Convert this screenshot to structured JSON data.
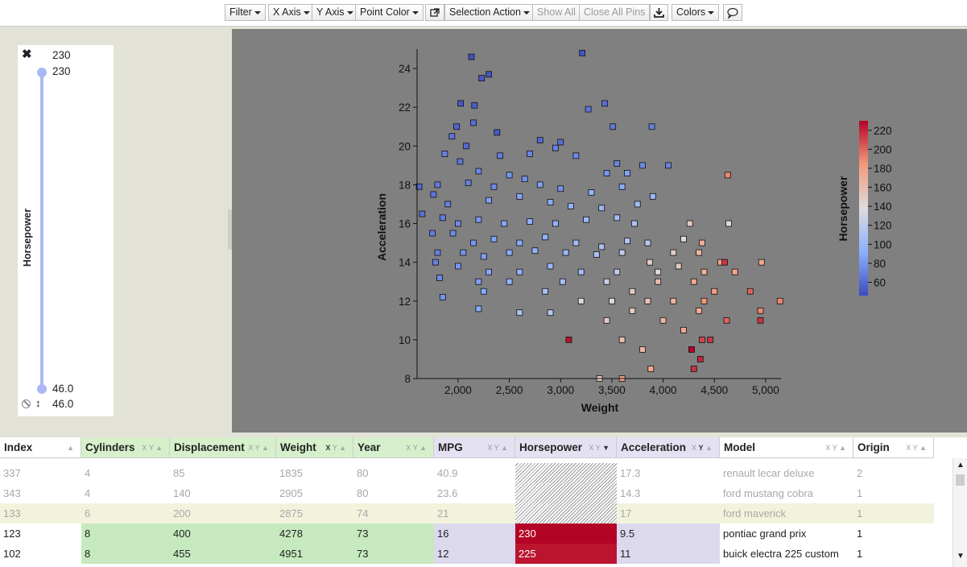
{
  "toolbar": {
    "filter": "Filter",
    "x_axis": "X Axis",
    "y_axis": "Y Axis",
    "point_color": "Point Color",
    "selection_action": "Selection Action",
    "show_all": "Show All",
    "close_all_pins": "Close All Pins",
    "colors": "Colors"
  },
  "slider": {
    "label": "Horsepower",
    "max_value": "230",
    "max_handle": "230",
    "min_handle": "46.0",
    "min_value": "46.0",
    "accent_color": "#aab8f5"
  },
  "chart_data": {
    "type": "scatter",
    "xlabel": "Weight",
    "ylabel": "Acceleration",
    "xlim": [
      1600,
      5150
    ],
    "ylim": [
      8,
      25
    ],
    "x_ticks": [
      "2,000",
      "2,500",
      "3,000",
      "3,500",
      "4,000",
      "4,500",
      "5,000"
    ],
    "x_tick_values": [
      2000,
      2500,
      3000,
      3500,
      4000,
      4500,
      5000
    ],
    "y_ticks": [
      "8",
      "10",
      "12",
      "14",
      "16",
      "18",
      "20",
      "22",
      "24"
    ],
    "y_tick_values": [
      8,
      10,
      12,
      14,
      16,
      18,
      20,
      22,
      24
    ],
    "color_by": "Horsepower",
    "color_ticks": [
      "60",
      "80",
      "100",
      "120",
      "140",
      "160",
      "180",
      "200",
      "220"
    ],
    "color_range": [
      46,
      230
    ],
    "background": "#808080",
    "points": [
      [
        3211,
        24.8,
        50
      ],
      [
        2130,
        24.6,
        48
      ],
      [
        2230,
        23.5,
        52
      ],
      [
        2300,
        23.7,
        50
      ],
      [
        2025,
        22.2,
        52
      ],
      [
        2160,
        22.1,
        55
      ],
      [
        3270,
        21.9,
        65
      ],
      [
        3430,
        22.2,
        62
      ],
      [
        1985,
        21.0,
        58
      ],
      [
        2150,
        21.2,
        62
      ],
      [
        2380,
        20.7,
        52
      ],
      [
        2080,
        20.0,
        60
      ],
      [
        3510,
        21.0,
        66
      ],
      [
        3890,
        21.0,
        70
      ],
      [
        1940,
        20.5,
        65
      ],
      [
        2800,
        20.3,
        60
      ],
      [
        3000,
        20.2,
        62
      ],
      [
        1870,
        19.6,
        70
      ],
      [
        2020,
        19.2,
        65
      ],
      [
        2410,
        19.5,
        68
      ],
      [
        2700,
        19.6,
        72
      ],
      [
        2950,
        19.9,
        70
      ],
      [
        3150,
        19.5,
        75
      ],
      [
        3550,
        19.1,
        72
      ],
      [
        3800,
        19.0,
        74
      ],
      [
        4050,
        19.0,
        70
      ],
      [
        2200,
        18.7,
        72
      ],
      [
        2500,
        18.5,
        80
      ],
      [
        2650,
        18.3,
        78
      ],
      [
        3450,
        18.6,
        80
      ],
      [
        3650,
        18.6,
        86
      ],
      [
        4630,
        18.5,
        190
      ],
      [
        1800,
        18.0,
        67
      ],
      [
        2100,
        18.1,
        70
      ],
      [
        2350,
        17.9,
        75
      ],
      [
        2800,
        18.0,
        85
      ],
      [
        3000,
        17.8,
        78
      ],
      [
        3300,
        17.6,
        95
      ],
      [
        3600,
        17.9,
        90
      ],
      [
        1620,
        17.9,
        60
      ],
      [
        1760,
        17.5,
        65
      ],
      [
        1900,
        17.0,
        70
      ],
      [
        2300,
        17.2,
        85
      ],
      [
        2600,
        17.4,
        88
      ],
      [
        2900,
        17.1,
        90
      ],
      [
        3100,
        16.9,
        95
      ],
      [
        3400,
        16.8,
        100
      ],
      [
        3750,
        17.0,
        105
      ],
      [
        3900,
        17.4,
        100
      ],
      [
        1650,
        16.5,
        62
      ],
      [
        1850,
        16.3,
        68
      ],
      [
        2000,
        16.0,
        75
      ],
      [
        2200,
        16.2,
        80
      ],
      [
        2450,
        16.0,
        88
      ],
      [
        2700,
        16.1,
        92
      ],
      [
        2950,
        16.0,
        95
      ],
      [
        3250,
        16.2,
        100
      ],
      [
        3550,
        16.3,
        105
      ],
      [
        3720,
        16.0,
        110
      ],
      [
        4260,
        16.0,
        150
      ],
      [
        4640,
        16.0,
        140
      ],
      [
        1750,
        15.5,
        68
      ],
      [
        1950,
        15.5,
        75
      ],
      [
        2150,
        15.0,
        80
      ],
      [
        2350,
        15.2,
        85
      ],
      [
        2600,
        15.0,
        90
      ],
      [
        2850,
        15.3,
        95
      ],
      [
        3150,
        15.0,
        105
      ],
      [
        3400,
        14.8,
        110
      ],
      [
        3650,
        15.1,
        115
      ],
      [
        3850,
        15.0,
        118
      ],
      [
        4200,
        15.2,
        140
      ],
      [
        4380,
        15.0,
        170
      ],
      [
        1800,
        14.5,
        70
      ],
      [
        2050,
        14.5,
        78
      ],
      [
        2250,
        14.3,
        85
      ],
      [
        2500,
        14.5,
        90
      ],
      [
        2750,
        14.6,
        95
      ],
      [
        3050,
        14.5,
        100
      ],
      [
        3350,
        14.4,
        110
      ],
      [
        3600,
        14.5,
        120
      ],
      [
        3870,
        14.0,
        150
      ],
      [
        4100,
        14.5,
        150
      ],
      [
        4350,
        14.5,
        165
      ],
      [
        4560,
        14.0,
        180
      ],
      [
        4960,
        14.0,
        175
      ],
      [
        4600,
        14.0,
        215
      ],
      [
        1780,
        14.0,
        70
      ],
      [
        2000,
        13.8,
        80
      ],
      [
        2300,
        13.5,
        88
      ],
      [
        2600,
        13.5,
        95
      ],
      [
        2900,
        13.8,
        100
      ],
      [
        3200,
        13.5,
        105
      ],
      [
        3550,
        13.5,
        120
      ],
      [
        3950,
        13.5,
        140
      ],
      [
        4150,
        13.8,
        150
      ],
      [
        4400,
        13.5,
        170
      ],
      [
        4700,
        13.5,
        175
      ],
      [
        1820,
        13.2,
        75
      ],
      [
        2200,
        13.0,
        85
      ],
      [
        2500,
        13.0,
        95
      ],
      [
        3020,
        13.0,
        105
      ],
      [
        3450,
        13.0,
        125
      ],
      [
        3700,
        12.5,
        150
      ],
      [
        3950,
        13.0,
        160
      ],
      [
        4300,
        13.0,
        175
      ],
      [
        4500,
        12.5,
        180
      ],
      [
        4850,
        12.5,
        200
      ],
      [
        1850,
        12.2,
        80
      ],
      [
        2250,
        12.5,
        90
      ],
      [
        2850,
        12.5,
        108
      ],
      [
        3200,
        12.0,
        140
      ],
      [
        3500,
        12.0,
        140
      ],
      [
        3850,
        12.0,
        155
      ],
      [
        4100,
        12.0,
        165
      ],
      [
        4400,
        12.0,
        185
      ],
      [
        5140,
        12.0,
        190
      ],
      [
        2200,
        11.6,
        90
      ],
      [
        2600,
        11.4,
        110
      ],
      [
        2900,
        11.4,
        115
      ],
      [
        3450,
        11.0,
        150
      ],
      [
        3700,
        11.5,
        150
      ],
      [
        4000,
        11.0,
        165
      ],
      [
        4350,
        11.5,
        170
      ],
      [
        4620,
        11.0,
        200
      ],
      [
        4950,
        11.0,
        215
      ],
      [
        4950,
        11.5,
        190
      ],
      [
        3080,
        10.0,
        225
      ],
      [
        4278,
        9.5,
        230
      ],
      [
        4363,
        9.0,
        220
      ],
      [
        3600,
        10.0,
        160
      ],
      [
        3800,
        9.5,
        165
      ],
      [
        4200,
        10.5,
        175
      ],
      [
        4380,
        10.0,
        210
      ],
      [
        4460,
        10.0,
        215
      ],
      [
        3880,
        8.5,
        175
      ],
      [
        3380,
        8.0,
        150
      ],
      [
        3600,
        8.0,
        180
      ],
      [
        4300,
        8.5,
        215
      ]
    ]
  },
  "grid": {
    "headers": [
      "Index",
      "Cylinders",
      "Displacement",
      "Weight",
      "Year",
      "MPG",
      "Horsepower",
      "Acceleration",
      "Model",
      "Origin"
    ],
    "rows": [
      [
        "337",
        "4",
        "85",
        "1835",
        "80",
        "40.9",
        "",
        "17.3",
        "renault lecar deluxe",
        "2"
      ],
      [
        "343",
        "4",
        "140",
        "2905",
        "80",
        "23.6",
        "",
        "14.3",
        "ford mustang cobra",
        "1"
      ],
      [
        "133",
        "6",
        "200",
        "2875",
        "74",
        "21",
        "",
        "17",
        "ford maverick",
        "1"
      ],
      [
        "123",
        "8",
        "400",
        "4278",
        "73",
        "16",
        "230",
        "9.5",
        "pontiac grand prix",
        "1"
      ],
      [
        "102",
        "8",
        "455",
        "4951",
        "73",
        "12",
        "225",
        "11",
        "buick electra 225 custom",
        "1"
      ]
    ]
  }
}
